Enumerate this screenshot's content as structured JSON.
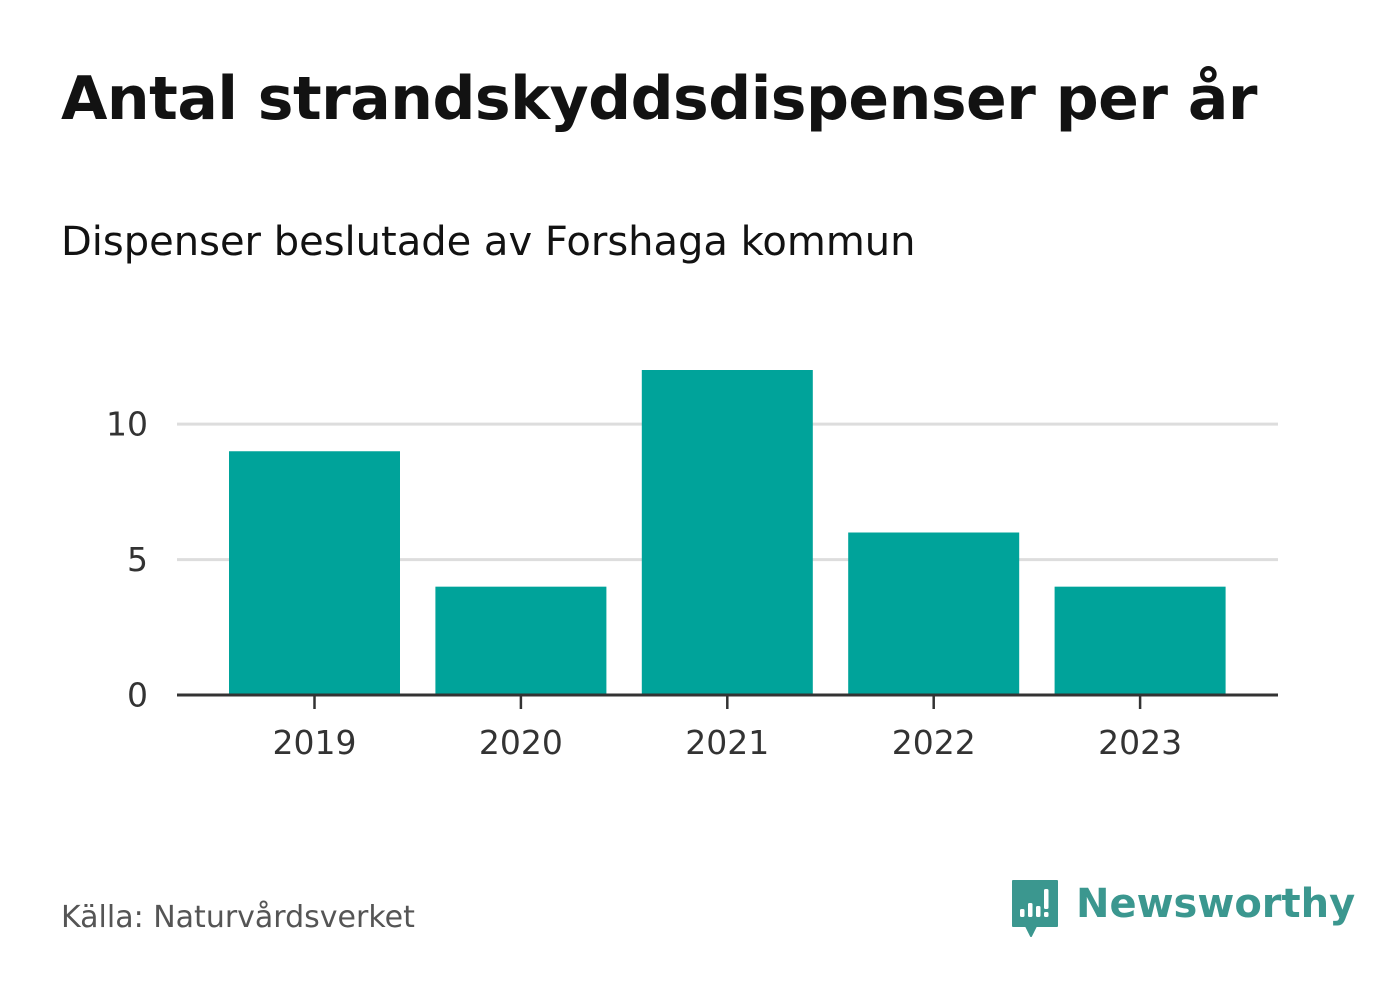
{
  "header": {
    "title": "Antal strandskyddsdispenser per år",
    "subtitle": "Dispenser beslutade av Forshaga kommun"
  },
  "footer": {
    "source": "Källa: Naturvårdsverket",
    "brand": "Newsworthy"
  },
  "colors": {
    "bar": "#00a39a",
    "grid": "#dddddd",
    "axis": "#333333",
    "tick_label": "#333333",
    "brand": "#3b978f"
  },
  "icons": {
    "brand_logo": "bar-chart-speech-bubble-icon"
  },
  "chart_data": {
    "type": "bar",
    "title": "Antal strandskyddsdispenser per år",
    "subtitle": "Dispenser beslutade av Forshaga kommun",
    "categories": [
      "2019",
      "2020",
      "2021",
      "2022",
      "2023"
    ],
    "values": [
      9,
      4,
      12,
      6,
      4
    ],
    "xlabel": "",
    "ylabel": "",
    "ylim": [
      0,
      12
    ],
    "yticks": [
      0,
      5,
      10
    ],
    "grid": true,
    "legend": "none"
  }
}
